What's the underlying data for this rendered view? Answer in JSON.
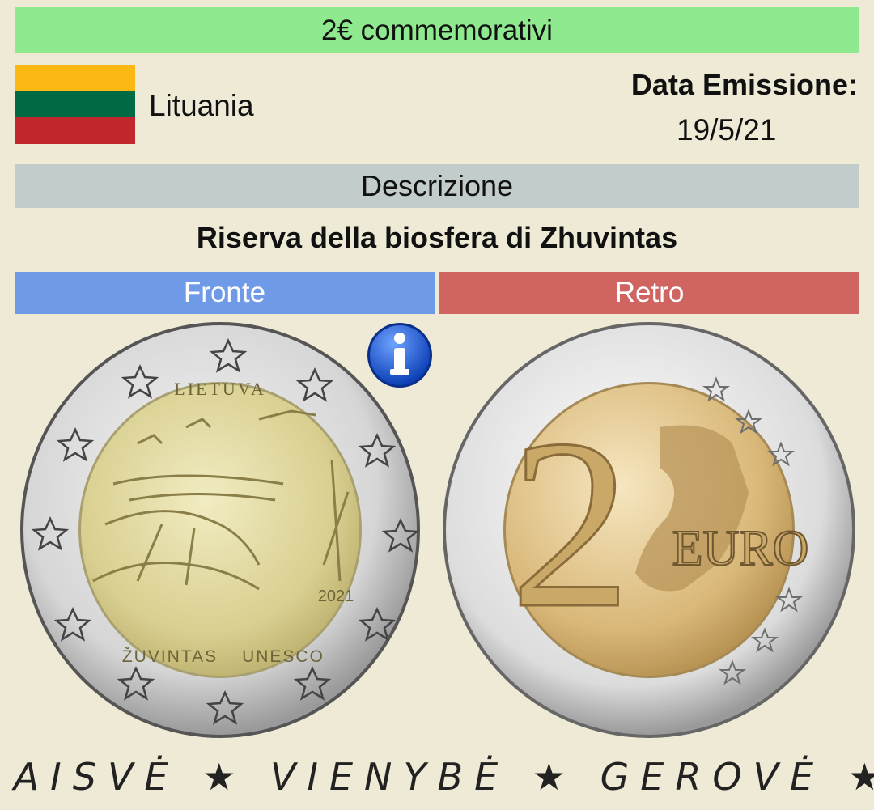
{
  "header": {
    "title": "2€ commemorativi"
  },
  "country": {
    "name": "Lituania",
    "flag_colors": [
      "#fdb913",
      "#006a44",
      "#c1272d"
    ]
  },
  "emission": {
    "label": "Data Emissione:",
    "date": "19/5/21"
  },
  "description": {
    "label": "Descrizione",
    "text": "Riserva della biosfera di Zhuvintas"
  },
  "tabs": {
    "front": "Fronte",
    "back": "Retro"
  },
  "coin_front": {
    "top_text": "LIETUVA",
    "year": "2021",
    "bottom_left": "ŽUVINTAS",
    "bottom_right": "UNESCO"
  },
  "coin_back": {
    "numeral": "2",
    "word": "EURO"
  },
  "edge": {
    "text": "LAISVĖ ★ VIENYBĖ ★ GEROVĖ ★"
  },
  "colors": {
    "header_bg": "#8fea8f",
    "desc_bg": "#c2cccb",
    "front_tab": "#6e9ae8",
    "back_tab": "#cf6461",
    "background": "#efead6"
  },
  "icons": {
    "info": "info-icon"
  }
}
